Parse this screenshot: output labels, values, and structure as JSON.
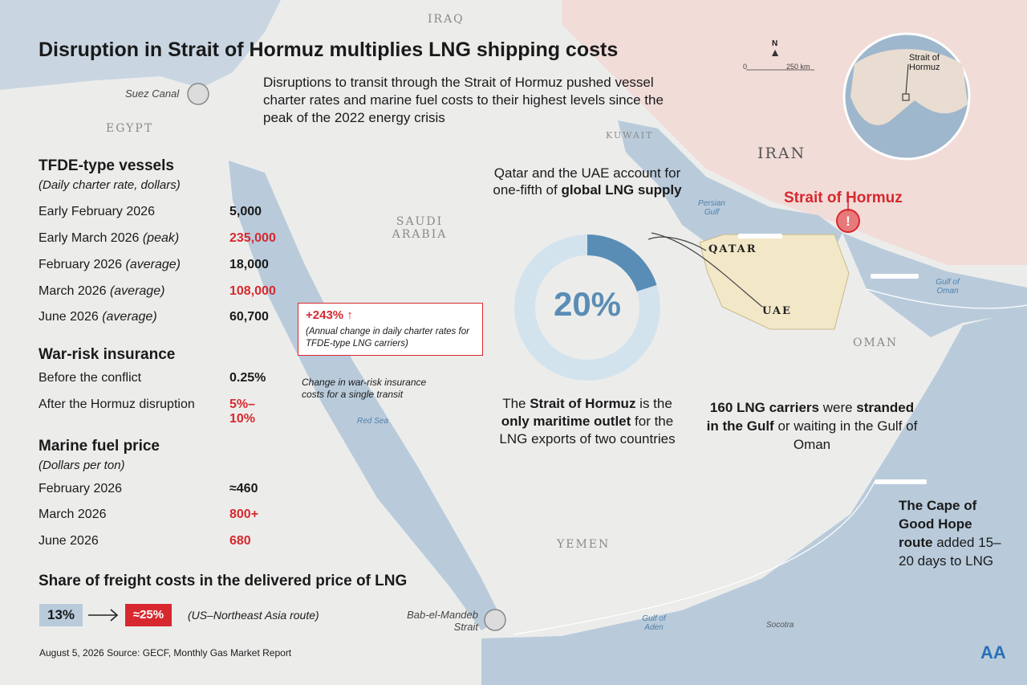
{
  "header": {
    "title": "Disruption in Strait of Hormuz multiplies LNG shipping costs",
    "subtitle": "Disruptions to transit through the Strait of Hormuz pushed vessel charter rates and marine fuel costs to their highest levels since the peak of the 2022 energy crisis"
  },
  "tfde": {
    "title": "TFDE-type vessels",
    "subtitle": "(Daily charter rate, dollars)",
    "rows": [
      {
        "label": "Early February 2026",
        "value": "5,000"
      },
      {
        "label": "Early March 2026",
        "qualifier": "(peak)",
        "value": "235,000",
        "highlight": true
      },
      {
        "label": "February 2026",
        "qualifier": "(average)",
        "value": "18,000"
      },
      {
        "label": "March 2026",
        "qualifier": "(average)",
        "value": "108,000",
        "highlight": true
      },
      {
        "label": "June 2026",
        "qualifier": "(average)",
        "value": "60,700"
      }
    ],
    "callout": {
      "value": "+243% ↑",
      "note": "(Annual change in daily charter rates for TFDE-type LNG carriers)"
    }
  },
  "war_risk": {
    "title": "War-risk insurance",
    "rows": [
      {
        "label": "Before the conflict",
        "value": "0.25%"
      },
      {
        "label": "After the Hormuz disruption",
        "value": "5%–10%",
        "highlight": true
      }
    ],
    "note": "Change in war-risk insurance costs for a single transit"
  },
  "fuel": {
    "title": "Marine fuel price",
    "subtitle": "(Dollars per ton)",
    "rows": [
      {
        "label": "February 2026",
        "value": "≈460"
      },
      {
        "label": "March 2026",
        "value": "800+",
        "highlight": true
      },
      {
        "label": "June 2026",
        "value": "680",
        "highlight": true
      }
    ]
  },
  "share": {
    "title": "Share of freight costs in the delivered price of LNG",
    "from": "13%",
    "to": "≈25%",
    "note": "(US–Northeast Asia route)"
  },
  "footer": "August 5, 2026  Source: GECF, Monthly Gas Market Report",
  "logo": "AA",
  "donut": {
    "value": 20,
    "label": "20%"
  },
  "notes": {
    "supply": [
      "Qatar and the UAE account for one-fifth of ",
      "global LNG supply"
    ],
    "outlet": [
      "The ",
      "Strait of Hormuz",
      " is the ",
      "only maritime outlet",
      " for the LNG exports of two countries"
    ],
    "stranded": [
      "160 LNG carriers",
      " were ",
      "stranded in the Gulf",
      " or waiting in the Gulf of Oman"
    ],
    "cape": [
      "The Cape of Good Hope route",
      " added 15–20 days to LNG"
    ]
  },
  "map": {
    "iraq": "IRAQ",
    "egypt": "EGYPT",
    "saudi_arabia": "SAUDI ARABIA",
    "kuwait": "KUWAIT",
    "iran": "IRAN",
    "qatar": "QATAR",
    "uae": "UAE",
    "oman": "OMAN",
    "yemen": "YEMEN",
    "red_sea": "Red Sea",
    "persian_gulf": "Persian Gulf",
    "gulf_of_oman": "Gulf of Oman",
    "gulf_of_aden": "Gulf of Aden",
    "socotra": "Socotra",
    "suez_canal": "Suez Canal",
    "bab_el_mandeb": "Bab-el-Mandeb Strait",
    "strait_of_hormuz": "Strait of Hormuz",
    "scale_start": "0",
    "scale_end": "250 km",
    "north": "N",
    "globe_label": "Strait of Hormuz"
  }
}
